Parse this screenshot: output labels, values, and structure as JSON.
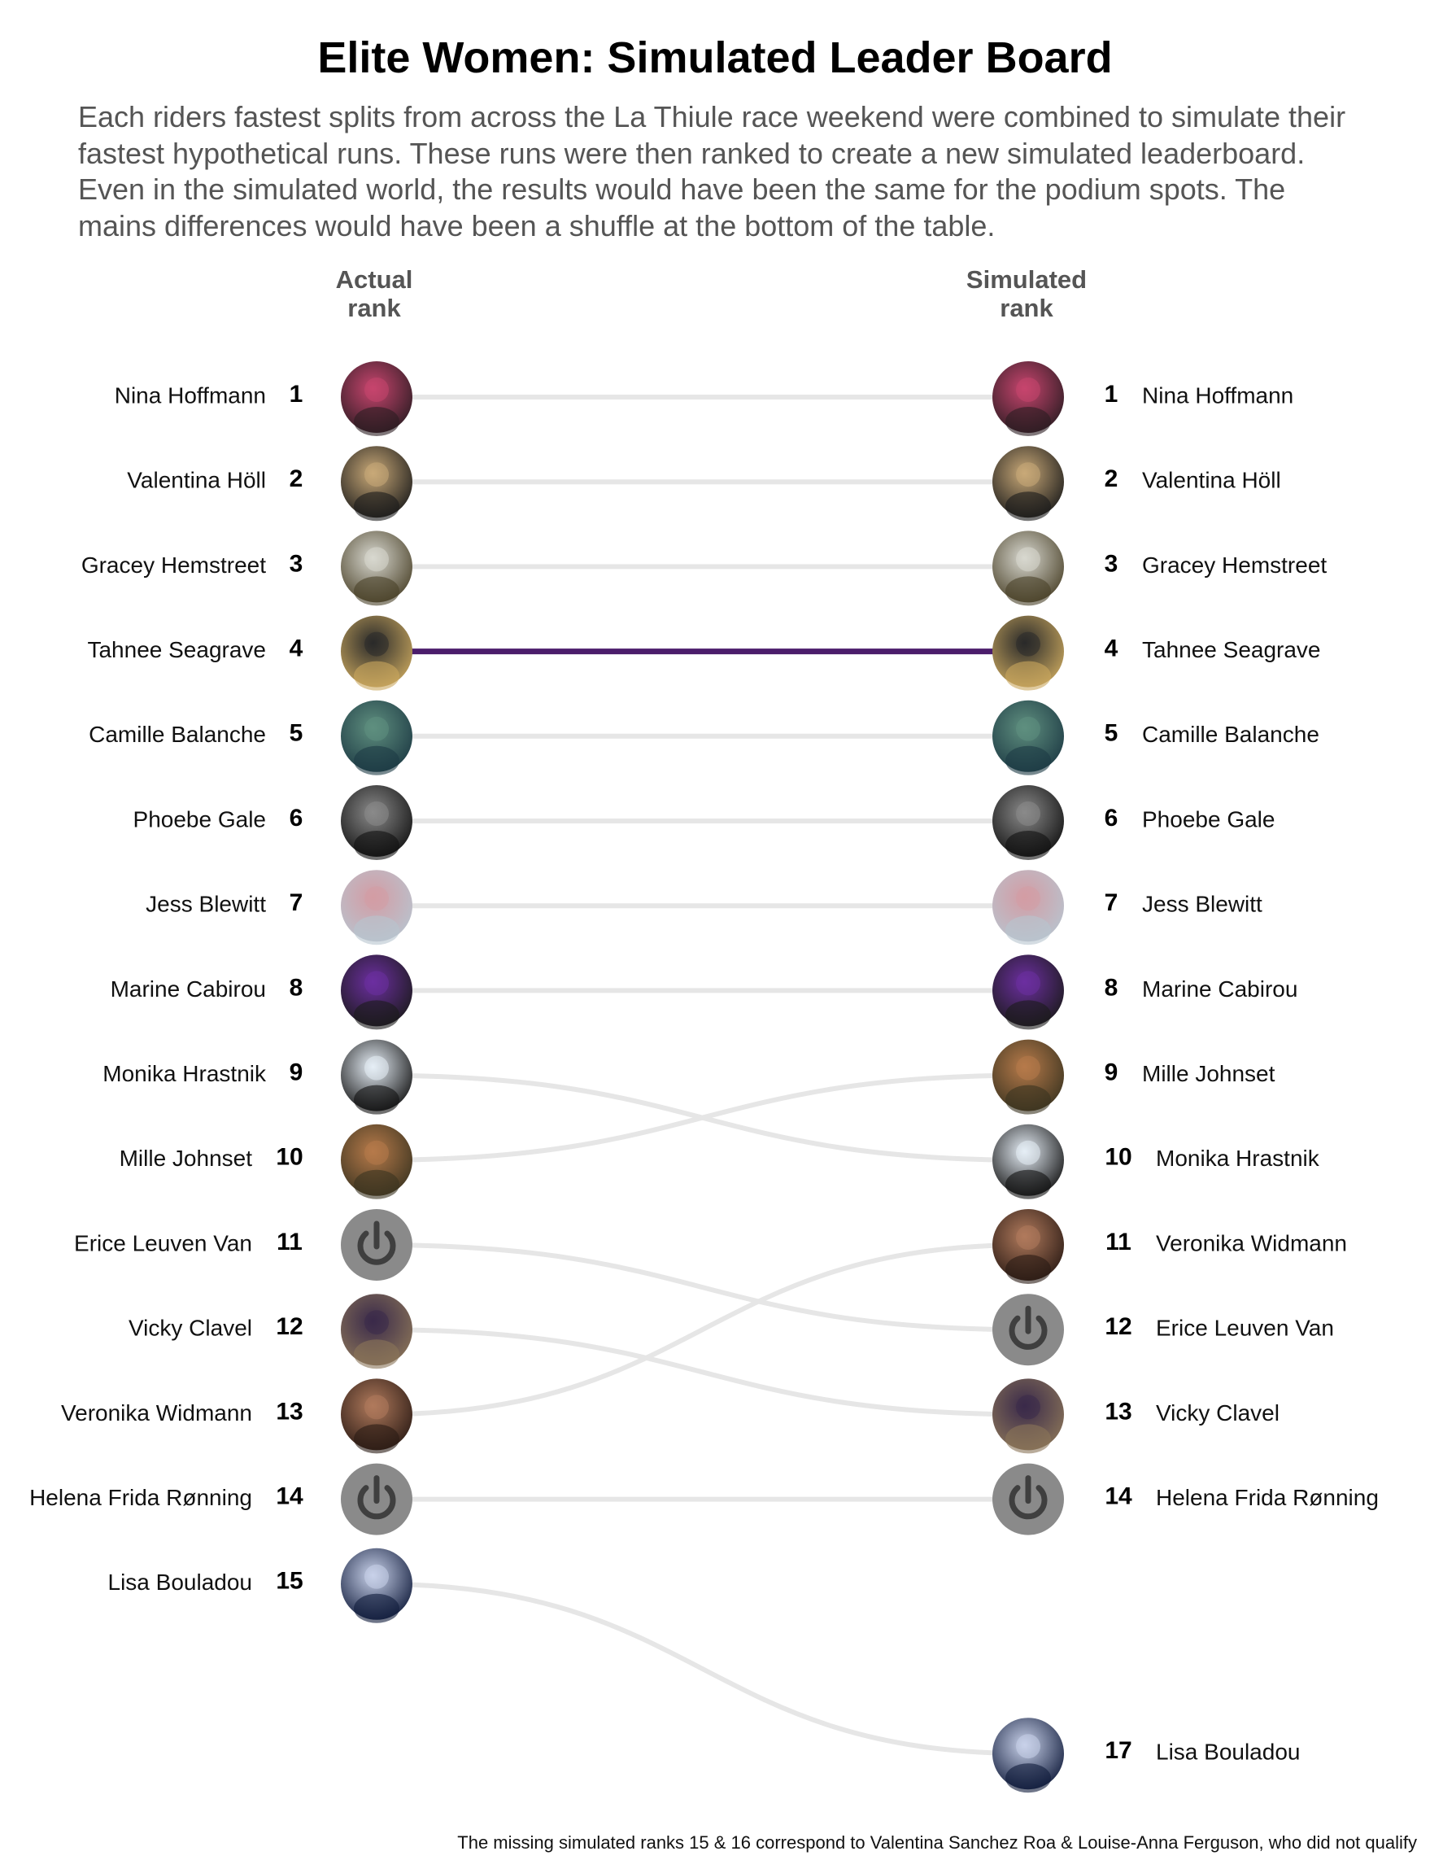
{
  "title": "Elite Women: Simulated Leader Board",
  "subtitle": "Each riders fastest splits from across the La Thiule race weekend were combined to simulate their fastest hypothetical runs. These runs were then ranked to create a new simulated leaderboard. Even in the simulated world, the results would have been the same for the podium spots. The mains differences would have been a shuffle at the bottom of the table.",
  "footnote": "The missing simulated ranks 15 & 16 correspond to Valentina Sanchez Roa & Louise-Anna Ferguson, who did not qualify",
  "columns": {
    "left": "Actual\nrank",
    "right": "Simulated\nrank"
  },
  "colors": {
    "line_default": "#e6e6e6",
    "line_highlight": "#4b1d6b",
    "placeholder_avatar": "#8a8a8a",
    "rank_text": "#000000"
  },
  "chart_data": {
    "type": "slope",
    "highlight": "Tahnee Seagrave",
    "riders": [
      {
        "name": "Nina Hoffmann",
        "actual": 1,
        "simulated": 1,
        "photo": true,
        "tone": [
          "#2b1c22",
          "#c7456e"
        ]
      },
      {
        "name": "Valentina Höll",
        "actual": 2,
        "simulated": 2,
        "photo": true,
        "tone": [
          "#1a1a1a",
          "#c9a978"
        ]
      },
      {
        "name": "Gracey Hemstreet",
        "actual": 3,
        "simulated": 3,
        "photo": true,
        "tone": [
          "#4a4128",
          "#d8d8d0"
        ]
      },
      {
        "name": "Tahnee Seagrave",
        "actual": 4,
        "simulated": 4,
        "photo": true,
        "tone": [
          "#c9a75e",
          "#2a2a2a"
        ]
      },
      {
        "name": "Camille Balanche",
        "actual": 5,
        "simulated": 5,
        "photo": true,
        "tone": [
          "#1d3a44",
          "#5f8f7f"
        ]
      },
      {
        "name": "Phoebe Gale",
        "actual": 6,
        "simulated": 6,
        "photo": true,
        "tone": [
          "#111111",
          "#8a8a8a"
        ]
      },
      {
        "name": "Jess Blewitt",
        "actual": 7,
        "simulated": 7,
        "photo": true,
        "tone": [
          "#b8c4cf",
          "#d39ca4"
        ]
      },
      {
        "name": "Marine Cabirou",
        "actual": 8,
        "simulated": 8,
        "photo": true,
        "tone": [
          "#1a1a1a",
          "#6c2fa0"
        ]
      },
      {
        "name": "Monika Hrastnik",
        "actual": 9,
        "simulated": 10,
        "photo": true,
        "tone": [
          "#111111",
          "#e6eef6"
        ]
      },
      {
        "name": "Mille Johnset",
        "actual": 10,
        "simulated": 9,
        "photo": true,
        "tone": [
          "#3b3420",
          "#b67a4a"
        ]
      },
      {
        "name": "Erice Leuven Van",
        "actual": 11,
        "simulated": 12,
        "photo": false,
        "icon": "power-icon"
      },
      {
        "name": "Vicky Clavel",
        "actual": 12,
        "simulated": 13,
        "photo": true,
        "tone": [
          "#8a7458",
          "#3a2a4a"
        ]
      },
      {
        "name": "Veronika Widmann",
        "actual": 13,
        "simulated": 11,
        "photo": true,
        "tone": [
          "#2a1a14",
          "#b07a5c"
        ]
      },
      {
        "name": "Helena Frida Rønning",
        "actual": 14,
        "simulated": 14,
        "photo": false,
        "icon": "power-icon"
      },
      {
        "name": "Lisa Bouladou",
        "actual": 15,
        "simulated": 17,
        "photo": true,
        "tone": [
          "#0f1a3a",
          "#c9d2ea"
        ]
      }
    ]
  }
}
